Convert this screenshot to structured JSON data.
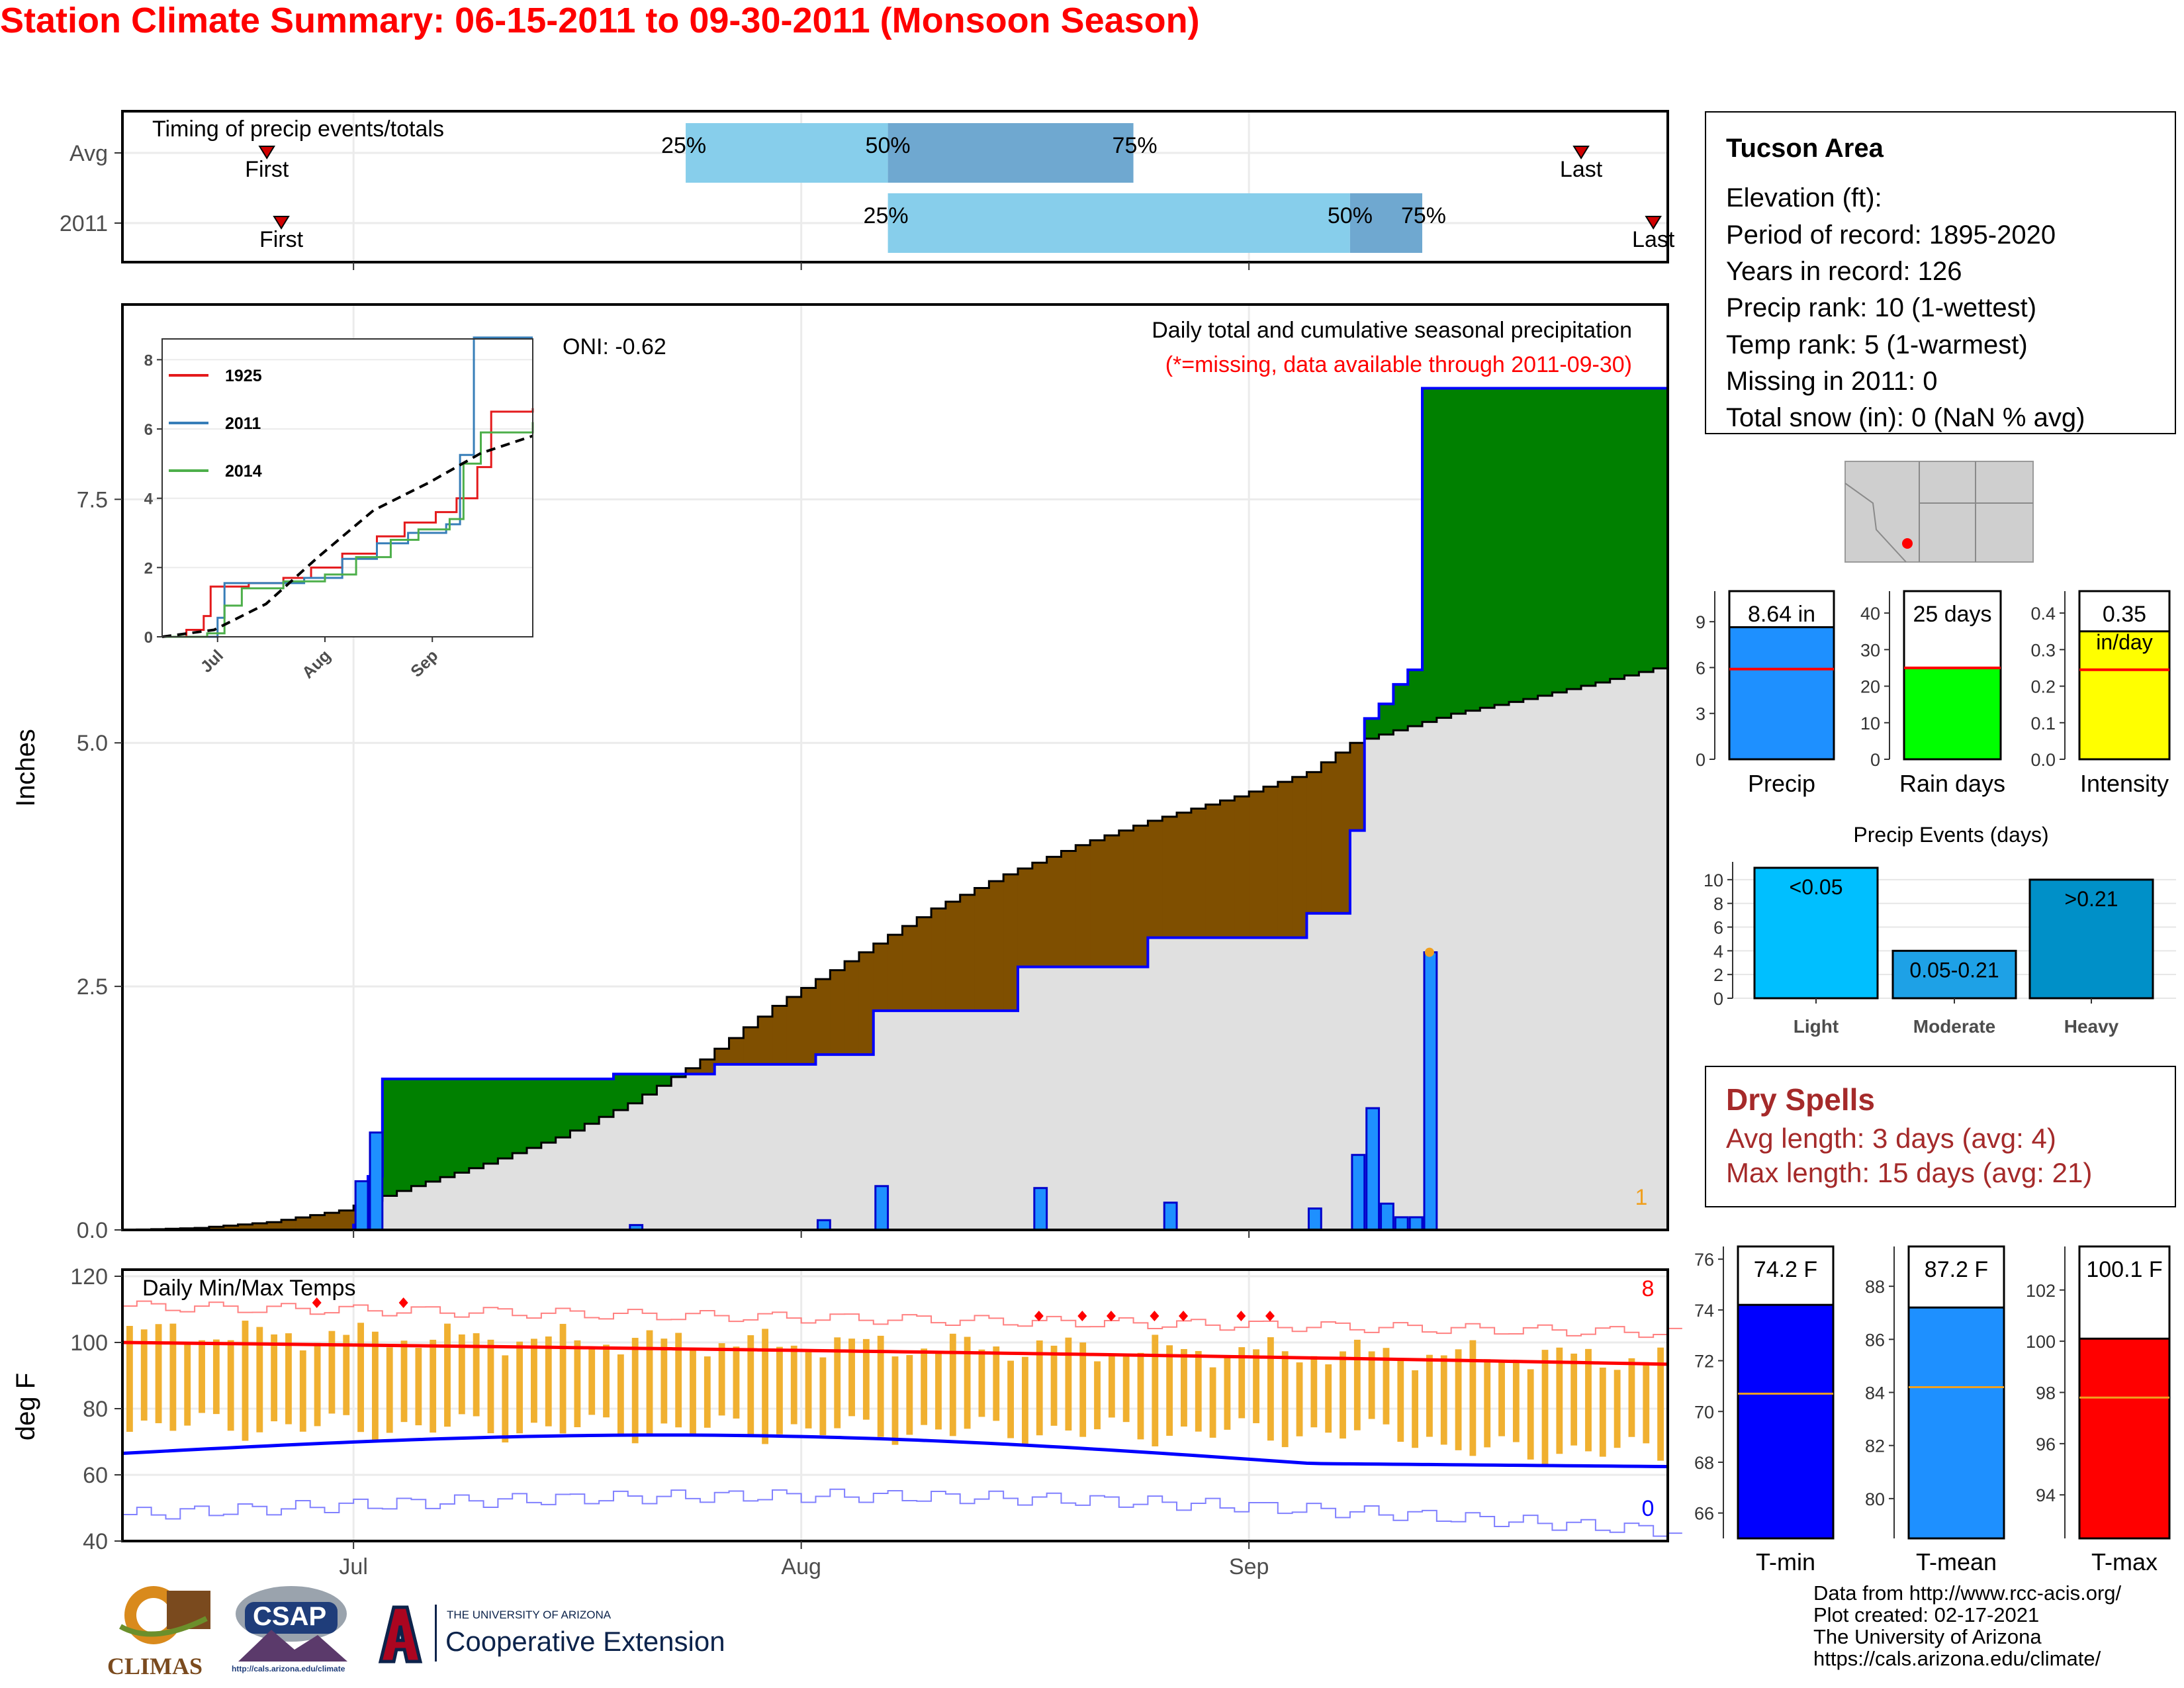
{
  "title": "Station Climate Summary: 06-15-2011 to 09-30-2011 (Monsoon Season)",
  "station_box": {
    "name": "Tucson Area",
    "lines": [
      "Elevation (ft):",
      "Period of record: 1895-2020",
      "Years in record: 126",
      "Precip rank: 10 (1-wettest)",
      "Temp rank: 5 (1-warmest)",
      "Missing in 2011: 0",
      "Total snow (in): 0 (NaN % avg)"
    ]
  },
  "dry_spells": {
    "title": "Dry Spells",
    "avg_length": "Avg length: 3 days (avg: 4)",
    "max_length": "Max length: 15 days (avg: 21)"
  },
  "credits": [
    "Data from http://www.rcc-acis.org/",
    "Plot created: 02-17-2021",
    "The University of Arizona",
    "https://cals.arizona.edu/climate/"
  ],
  "logos": {
    "climas": "CLIMAS",
    "csap": "CSAP",
    "csap_url": "http://cals.arizona.edu/climate",
    "ua_small": "THE UNIVERSITY OF ARIZONA",
    "ua_big": "Cooperative Extension"
  },
  "colors": {
    "title_red": "#ff0000",
    "timing_light": "#87ceeb",
    "timing_dark": "#6fa8d0",
    "above_avg": "#008000",
    "below_avg": "#7f4f00",
    "cumulative_area": "#e0e0e0",
    "daily_bar": "#1e90ff",
    "temp_bar": "#f0b030",
    "tmin": "#0000ff",
    "tmax": "#ff0000",
    "dry_spell_text": "#a52a2a"
  },
  "chart_data": [
    {
      "id": "timing",
      "type": "bar",
      "title": "Timing of precip events/totals",
      "categories": [
        "Avg",
        "2011"
      ],
      "x_range_dates": [
        "2011-06-15",
        "2011-09-30"
      ],
      "rows": [
        {
          "label": "Avg",
          "first": "2011-06-25",
          "p25": "2011-07-24",
          "p50": "2011-08-07",
          "p75": "2011-08-24",
          "last": "2011-09-24",
          "first_label": "First",
          "last_label": "Last",
          "p25_label": "25%",
          "p50_label": "50%",
          "p75_label": "75%"
        },
        {
          "label": "2011",
          "first": "2011-06-26",
          "p25": "2011-08-07",
          "p50": "2011-09-08",
          "p75": "2011-09-13",
          "last": "2011-09-29",
          "first_label": "First",
          "last_label": "Last",
          "p25_label": "25%",
          "p50_label": "50%",
          "p75_label": "75%"
        }
      ]
    },
    {
      "id": "precip_main",
      "type": "area",
      "title": "Daily total and cumulative seasonal precipitation",
      "subtitle": "(*=missing, data available through 2011-09-30)",
      "annotation": "ONI: -0.62",
      "corner_count": "1",
      "ylabel": "Inches",
      "ylim": [
        0,
        9.5
      ],
      "yticks": [
        0.0,
        2.5,
        5.0,
        7.5
      ],
      "ytick_labels": [
        "0.0",
        "2.5",
        "5.0",
        "7.5"
      ],
      "xticks": [
        "2011-07-01",
        "2011-08-01",
        "2011-09-01"
      ],
      "xtick_labels": [
        "Jul",
        "Aug",
        "Sep"
      ],
      "average_cumulative": [
        {
          "x": "2011-06-15",
          "y": 0.0
        },
        {
          "x": "2011-06-20",
          "y": 0.02
        },
        {
          "x": "2011-06-25",
          "y": 0.08
        },
        {
          "x": "2011-06-30",
          "y": 0.2
        },
        {
          "x": "2011-07-05",
          "y": 0.45
        },
        {
          "x": "2011-07-10",
          "y": 0.68
        },
        {
          "x": "2011-07-15",
          "y": 0.95
        },
        {
          "x": "2011-07-20",
          "y": 1.3
        },
        {
          "x": "2011-07-25",
          "y": 1.75
        },
        {
          "x": "2011-07-30",
          "y": 2.3
        },
        {
          "x": "2011-08-05",
          "y": 2.85
        },
        {
          "x": "2011-08-10",
          "y": 3.3
        },
        {
          "x": "2011-08-15",
          "y": 3.65
        },
        {
          "x": "2011-08-20",
          "y": 3.95
        },
        {
          "x": "2011-08-25",
          "y": 4.2
        },
        {
          "x": "2011-08-31",
          "y": 4.45
        },
        {
          "x": "2011-09-05",
          "y": 4.7
        },
        {
          "x": "2011-09-08",
          "y": 5.0
        },
        {
          "x": "2011-09-15",
          "y": 5.3
        },
        {
          "x": "2011-09-20",
          "y": 5.45
        },
        {
          "x": "2011-09-25",
          "y": 5.62
        },
        {
          "x": "2011-09-30",
          "y": 5.8
        }
      ],
      "cumulative_2011": [
        {
          "x": "2011-06-15",
          "y": 0.0
        },
        {
          "x": "2011-06-30",
          "y": 0.0
        },
        {
          "x": "2011-07-01",
          "y": 0.05
        },
        {
          "x": "2011-07-02",
          "y": 0.55
        },
        {
          "x": "2011-07-03",
          "y": 1.55
        },
        {
          "x": "2011-07-19",
          "y": 1.6
        },
        {
          "x": "2011-07-26",
          "y": 1.7
        },
        {
          "x": "2011-08-02",
          "y": 1.8
        },
        {
          "x": "2011-08-06",
          "y": 2.25
        },
        {
          "x": "2011-08-16",
          "y": 2.7
        },
        {
          "x": "2011-08-25",
          "y": 3.0
        },
        {
          "x": "2011-09-05",
          "y": 3.25
        },
        {
          "x": "2011-09-08",
          "y": 4.1
        },
        {
          "x": "2011-09-09",
          "y": 5.25
        },
        {
          "x": "2011-09-10",
          "y": 5.4
        },
        {
          "x": "2011-09-11",
          "y": 5.6
        },
        {
          "x": "2011-09-12",
          "y": 5.75
        },
        {
          "x": "2011-09-13",
          "y": 8.64
        },
        {
          "x": "2011-09-30",
          "y": 8.64
        }
      ],
      "daily_2011": [
        {
          "x": "2011-07-01",
          "y": 0.5
        },
        {
          "x": "2011-07-02",
          "y": 1.0
        },
        {
          "x": "2011-07-20",
          "y": 0.05
        },
        {
          "x": "2011-08-02",
          "y": 0.1
        },
        {
          "x": "2011-08-06",
          "y": 0.45
        },
        {
          "x": "2011-08-17",
          "y": 0.43
        },
        {
          "x": "2011-08-26",
          "y": 0.28
        },
        {
          "x": "2011-09-05",
          "y": 0.22
        },
        {
          "x": "2011-09-08",
          "y": 0.77
        },
        {
          "x": "2011-09-09",
          "y": 1.25
        },
        {
          "x": "2011-09-10",
          "y": 0.27
        },
        {
          "x": "2011-09-11",
          "y": 0.13
        },
        {
          "x": "2011-09-12",
          "y": 0.13
        },
        {
          "x": "2011-09-13",
          "y": 2.85
        }
      ]
    },
    {
      "id": "inset_years",
      "type": "line",
      "xlim_dates": [
        "2011-06-15",
        "2011-09-30"
      ],
      "ylim": [
        0,
        8.6
      ],
      "yticks": [
        0,
        2,
        4,
        6,
        8
      ],
      "ytick_labels": [
        "0",
        "2",
        "4",
        "6",
        "8"
      ],
      "xtick_labels": [
        "Jul",
        "Aug",
        "Sep"
      ],
      "series": [
        {
          "name": "1925",
          "color": "#e41a1c",
          "points": [
            {
              "x": "2011-06-15",
              "y": 0
            },
            {
              "x": "2011-06-22",
              "y": 0.2
            },
            {
              "x": "2011-06-27",
              "y": 0.6
            },
            {
              "x": "2011-06-29",
              "y": 1.45
            },
            {
              "x": "2011-07-10",
              "y": 1.55
            },
            {
              "x": "2011-07-20",
              "y": 1.7
            },
            {
              "x": "2011-07-28",
              "y": 2.0
            },
            {
              "x": "2011-08-06",
              "y": 2.4
            },
            {
              "x": "2011-08-16",
              "y": 2.9
            },
            {
              "x": "2011-08-24",
              "y": 3.3
            },
            {
              "x": "2011-09-02",
              "y": 3.6
            },
            {
              "x": "2011-09-08",
              "y": 4.0
            },
            {
              "x": "2011-09-14",
              "y": 4.9
            },
            {
              "x": "2011-09-18",
              "y": 6.5
            },
            {
              "x": "2011-09-30",
              "y": 6.6
            }
          ]
        },
        {
          "name": "2011",
          "color": "#377eb8",
          "points": [
            {
              "x": "2011-06-15",
              "y": 0
            },
            {
              "x": "2011-06-30",
              "y": 0
            },
            {
              "x": "2011-07-01",
              "y": 0.55
            },
            {
              "x": "2011-07-03",
              "y": 1.55
            },
            {
              "x": "2011-07-26",
              "y": 1.7
            },
            {
              "x": "2011-08-06",
              "y": 2.25
            },
            {
              "x": "2011-08-16",
              "y": 2.7
            },
            {
              "x": "2011-08-25",
              "y": 3.0
            },
            {
              "x": "2011-09-05",
              "y": 3.25
            },
            {
              "x": "2011-09-09",
              "y": 5.25
            },
            {
              "x": "2011-09-13",
              "y": 8.64
            },
            {
              "x": "2011-09-30",
              "y": 8.64
            }
          ]
        },
        {
          "name": "2014",
          "color": "#4daf4a",
          "points": [
            {
              "x": "2011-06-15",
              "y": 0
            },
            {
              "x": "2011-06-28",
              "y": 0.1
            },
            {
              "x": "2011-07-03",
              "y": 0.9
            },
            {
              "x": "2011-07-08",
              "y": 1.4
            },
            {
              "x": "2011-07-20",
              "y": 1.6
            },
            {
              "x": "2011-08-01",
              "y": 1.8
            },
            {
              "x": "2011-08-10",
              "y": 2.3
            },
            {
              "x": "2011-08-20",
              "y": 2.8
            },
            {
              "x": "2011-08-28",
              "y": 3.1
            },
            {
              "x": "2011-09-06",
              "y": 3.4
            },
            {
              "x": "2011-09-10",
              "y": 5.0
            },
            {
              "x": "2011-09-15",
              "y": 5.9
            },
            {
              "x": "2011-09-30",
              "y": 6.2
            }
          ]
        },
        {
          "name": "",
          "color": "#000000",
          "dashed": true,
          "points": [
            {
              "x": "2011-06-15",
              "y": 0.0
            },
            {
              "x": "2011-06-30",
              "y": 0.2
            },
            {
              "x": "2011-07-15",
              "y": 0.95
            },
            {
              "x": "2011-07-30",
              "y": 2.3
            },
            {
              "x": "2011-08-15",
              "y": 3.65
            },
            {
              "x": "2011-08-31",
              "y": 4.45
            },
            {
              "x": "2011-09-15",
              "y": 5.3
            },
            {
              "x": "2011-09-30",
              "y": 5.8
            }
          ]
        }
      ]
    },
    {
      "id": "temps",
      "type": "line",
      "title": "Daily Min/Max Temps",
      "ylabel": "deg F",
      "ylim": [
        40,
        122
      ],
      "yticks": [
        40,
        60,
        80,
        100,
        120
      ],
      "ytick_labels": [
        "40",
        "60",
        "80",
        "100",
        "120"
      ],
      "xticks": [
        "2011-07-01",
        "2011-08-01",
        "2011-09-01"
      ],
      "xtick_labels": [
        "Jul",
        "Aug",
        "Sep"
      ],
      "record_high_count": "8",
      "record_low_count": "0",
      "avg_tmax_start_end": [
        100,
        92
      ],
      "avg_tmin_start_end": [
        66.5,
        62.5
      ],
      "record_high_start_end": [
        111,
        103
      ],
      "record_low_start_end": [
        48,
        43
      ]
    },
    {
      "id": "precip_total",
      "type": "bar",
      "categories": [
        "Precip"
      ],
      "values": [
        8.64
      ],
      "value_label": "8.64 in",
      "average": 5.9,
      "ylim": [
        0,
        11
      ],
      "yticks": [
        0,
        3,
        6,
        9
      ],
      "ytick_labels": [
        "0",
        "3",
        "6",
        "9"
      ]
    },
    {
      "id": "rain_days",
      "type": "bar",
      "categories": [
        "Rain days"
      ],
      "values": [
        25
      ],
      "value_label": "25 days",
      "average": 25,
      "ylim": [
        0,
        46
      ],
      "yticks": [
        0,
        10,
        20,
        30,
        40
      ],
      "ytick_labels": [
        "0",
        "10",
        "20",
        "30",
        "40"
      ]
    },
    {
      "id": "intensity",
      "type": "bar",
      "categories": [
        "Intensity"
      ],
      "values": [
        0.35
      ],
      "value_label": "0.35",
      "value_label_2": "in/day",
      "average": 0.245,
      "ylim": [
        0,
        0.46
      ],
      "yticks": [
        0.0,
        0.1,
        0.2,
        0.3,
        0.4
      ],
      "ytick_labels": [
        "0.0",
        "0.1",
        "0.2",
        "0.3",
        "0.4"
      ]
    },
    {
      "id": "precip_events",
      "type": "bar",
      "title": "Precip Events (days)",
      "categories": [
        "Light",
        "Moderate",
        "Heavy"
      ],
      "values": [
        11,
        4,
        10
      ],
      "bar_labels": [
        "<0.05",
        "0.05-0.21",
        ">0.21"
      ],
      "ylim": [
        0,
        11.5
      ],
      "yticks": [
        0,
        2,
        4,
        6,
        8,
        10
      ],
      "ytick_labels": [
        "0",
        "2",
        "4",
        "6",
        "8",
        "10"
      ]
    },
    {
      "id": "tmin",
      "type": "bar",
      "categories": [
        "T-min"
      ],
      "values": [
        74.2
      ],
      "value_label": "74.2 F",
      "average": 70.7,
      "ylim": [
        65,
        76.5
      ],
      "yticks": [
        66,
        68,
        70,
        72,
        74,
        76
      ],
      "ytick_labels": [
        "66",
        "68",
        "70",
        "72",
        "74",
        "76"
      ]
    },
    {
      "id": "tmean",
      "type": "bar",
      "categories": [
        "T-mean"
      ],
      "values": [
        87.2
      ],
      "value_label": "87.2 F",
      "average": 84.2,
      "ylim": [
        78.5,
        89.5
      ],
      "yticks": [
        80,
        82,
        84,
        86,
        88
      ],
      "ytick_labels": [
        "80",
        "82",
        "84",
        "86",
        "88"
      ]
    },
    {
      "id": "tmax",
      "type": "bar",
      "categories": [
        "T-max"
      ],
      "values": [
        100.1
      ],
      "value_label": "100.1 F",
      "average": 97.8,
      "ylim": [
        92.3,
        103.7
      ],
      "yticks": [
        94,
        96,
        98,
        100,
        102
      ],
      "ytick_labels": [
        "94",
        "96",
        "98",
        "100",
        "102"
      ]
    }
  ]
}
